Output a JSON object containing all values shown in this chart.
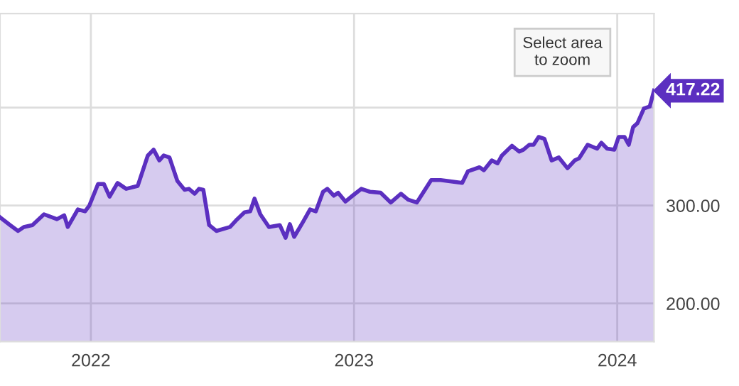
{
  "chart_data": {
    "type": "area",
    "x": [
      "2021-08-28",
      "2021-09-11",
      "2021-09-22",
      "2021-09-30",
      "2021-10-12",
      "2021-10-28",
      "2021-11-15",
      "2021-11-25",
      "2021-11-30",
      "2021-12-14",
      "2021-12-24",
      "2021-12-30",
      "2022-01-11",
      "2022-01-19",
      "2022-01-27",
      "2022-02-07",
      "2022-02-19",
      "2022-03-07",
      "2022-03-21",
      "2022-03-29",
      "2022-04-06",
      "2022-04-12",
      "2022-04-20",
      "2022-05-01",
      "2022-05-11",
      "2022-05-17",
      "2022-05-25",
      "2022-05-31",
      "2022-06-06",
      "2022-06-14",
      "2022-06-24",
      "2022-07-13",
      "2022-07-23",
      "2022-08-02",
      "2022-08-10",
      "2022-08-16",
      "2022-08-24",
      "2022-09-05",
      "2022-09-20",
      "2022-09-28",
      "2022-10-04",
      "2022-10-10",
      "2022-10-22",
      "2022-11-01",
      "2022-11-09",
      "2022-11-19",
      "2022-11-25",
      "2022-12-04",
      "2022-12-10",
      "2022-12-20",
      "2022-12-30",
      "2023-01-11",
      "2023-01-23",
      "2023-02-07",
      "2023-02-21",
      "2023-03-07",
      "2023-03-17",
      "2023-03-29",
      "2023-04-18",
      "2023-05-01",
      "2023-05-31",
      "2023-06-08",
      "2023-06-24",
      "2023-06-30",
      "2023-07-11",
      "2023-07-19",
      "2023-07-25",
      "2023-08-08",
      "2023-08-18",
      "2023-08-24",
      "2023-09-01",
      "2023-09-07",
      "2023-09-14",
      "2023-09-22",
      "2023-10-02",
      "2023-10-12",
      "2023-10-24",
      "2023-11-03",
      "2023-11-09",
      "2023-11-21",
      "2023-12-04",
      "2023-12-10",
      "2023-12-18",
      "2023-12-28",
      "2024-01-03",
      "2024-01-11",
      "2024-01-17",
      "2024-01-23",
      "2024-01-29",
      "2024-02-07",
      "2024-02-15",
      "2024-02-21"
    ],
    "series": [
      {
        "color": "#5b2fc0",
        "values": [
          288,
          280,
          274,
          278,
          280,
          291,
          286,
          290,
          278,
          296,
          294,
          300,
          322,
          322,
          309,
          323,
          317,
          320,
          351,
          357,
          346,
          351,
          349,
          325,
          316,
          317,
          312,
          317,
          316,
          280,
          274,
          278,
          286,
          293,
          294,
          307,
          291,
          278,
          280,
          267,
          281,
          268,
          283,
          296,
          294,
          314,
          317,
          310,
          313,
          304,
          310,
          317,
          314,
          313,
          303,
          312,
          306,
          303,
          326,
          326,
          323,
          335,
          339,
          336,
          346,
          343,
          351,
          361,
          355,
          357,
          362,
          362,
          370,
          368,
          346,
          349,
          338,
          346,
          348,
          362,
          358,
          364,
          358,
          357,
          370,
          370,
          362,
          380,
          384,
          399,
          401,
          417.22
        ]
      }
    ],
    "xlim": [
      "2021-08-28",
      "2024-02-21"
    ],
    "xticks": [
      {
        "value": "2022-01-01",
        "label": "2022"
      },
      {
        "value": "2023-01-01",
        "label": "2023"
      },
      {
        "value": "2024-01-01",
        "label": "2024"
      }
    ],
    "ylim": [
      161,
      496
    ],
    "yticks": [
      {
        "value": 200,
        "label": "200.00"
      },
      {
        "value": 300,
        "label": "300.00"
      },
      {
        "value": 400,
        "label": null
      }
    ],
    "grid": true,
    "annotations": [
      {
        "text": "417.22",
        "x": "2024-02-21",
        "y": 417.22
      },
      "Select area\nto zoom"
    ]
  }
}
